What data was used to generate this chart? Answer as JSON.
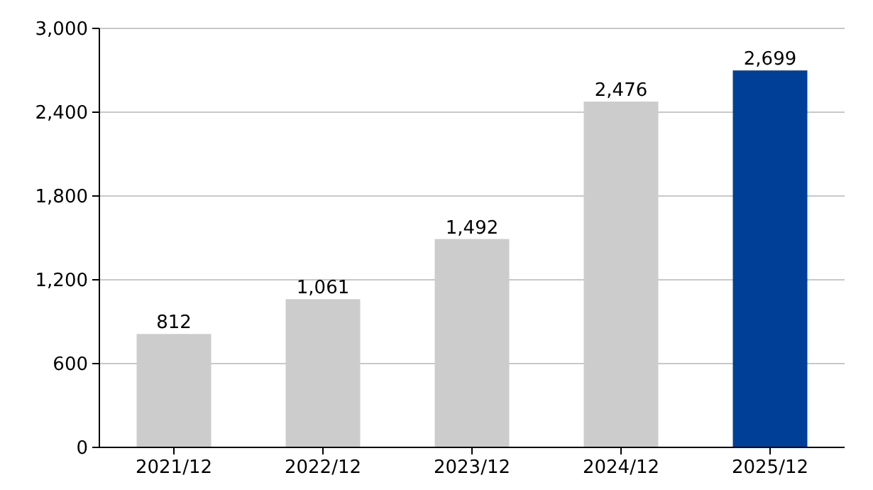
{
  "chart_data": {
    "type": "bar",
    "categories": [
      "2021/12",
      "2022/12",
      "2023/12",
      "2024/12",
      "2025/12"
    ],
    "values": [
      812,
      1061,
      1492,
      2476,
      2699
    ],
    "colors": [
      "#cccccc",
      "#cccccc",
      "#cccccc",
      "#cccccc",
      "#003f98"
    ],
    "value_labels": [
      "812",
      "1,061",
      "1,492",
      "2,476",
      "2,699"
    ],
    "ylim": [
      0,
      3000
    ],
    "yticks": [
      0,
      {
        "value": 600,
        "label": "600"
      },
      {
        "value": 1200,
        "label": "1,200"
      },
      {
        "value": 1800,
        "label": "1,800"
      },
      {
        "value": 2400,
        "label": "2,400"
      },
      {
        "value": 3000,
        "label": "3,000"
      }
    ],
    "grid": "y"
  }
}
